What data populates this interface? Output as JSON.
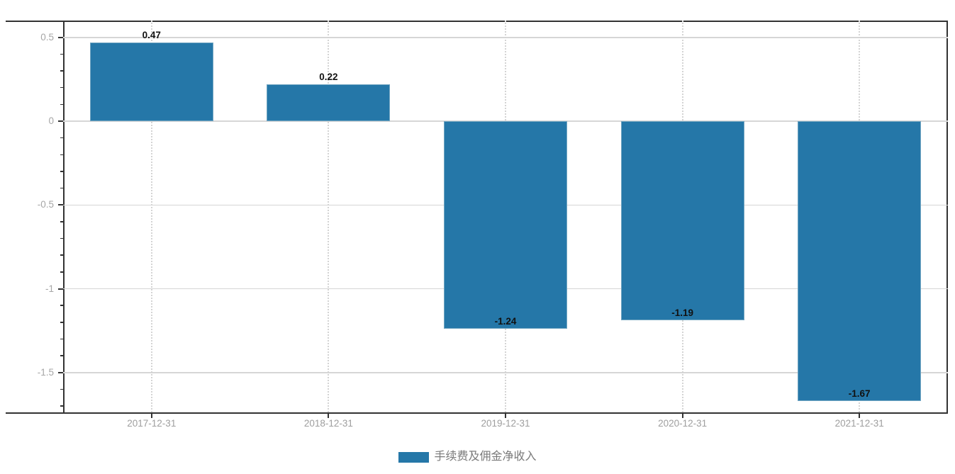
{
  "chart_data": {
    "type": "bar",
    "title": "",
    "xlabel": "",
    "ylabel": "",
    "categories": [
      "2017-12-31",
      "2018-12-31",
      "2019-12-31",
      "2020-12-31",
      "2021-12-31"
    ],
    "series": [
      {
        "name": "手续费及佣金净收入",
        "values": [
          0.47,
          0.22,
          -1.24,
          -1.19,
          -1.67
        ]
      }
    ],
    "value_labels": [
      "0.47",
      "0.22",
      "-1.24",
      "-1.19",
      "-1.67"
    ],
    "y_ticks": [
      0.5,
      0,
      -0.5,
      -1,
      -1.5
    ],
    "y_tick_labels": [
      "0.5",
      "0",
      "-0.5",
      "-1",
      "-1.5"
    ],
    "y_minor_tick_step": 0.1,
    "ylim": [
      -1.74,
      0.6
    ],
    "grid": true,
    "vertical_gridlines": "dotted-at-categories",
    "legend_position": "bottom",
    "bar_color": "#2577a8",
    "bar_border_color": "#72a6c2",
    "axis_color": "#333333",
    "gridline_color": "#d6d6d6",
    "tick_label_color": "#a6a6a6",
    "value_label_color": "#111111",
    "legend_text_color": "#7a7a7a"
  }
}
